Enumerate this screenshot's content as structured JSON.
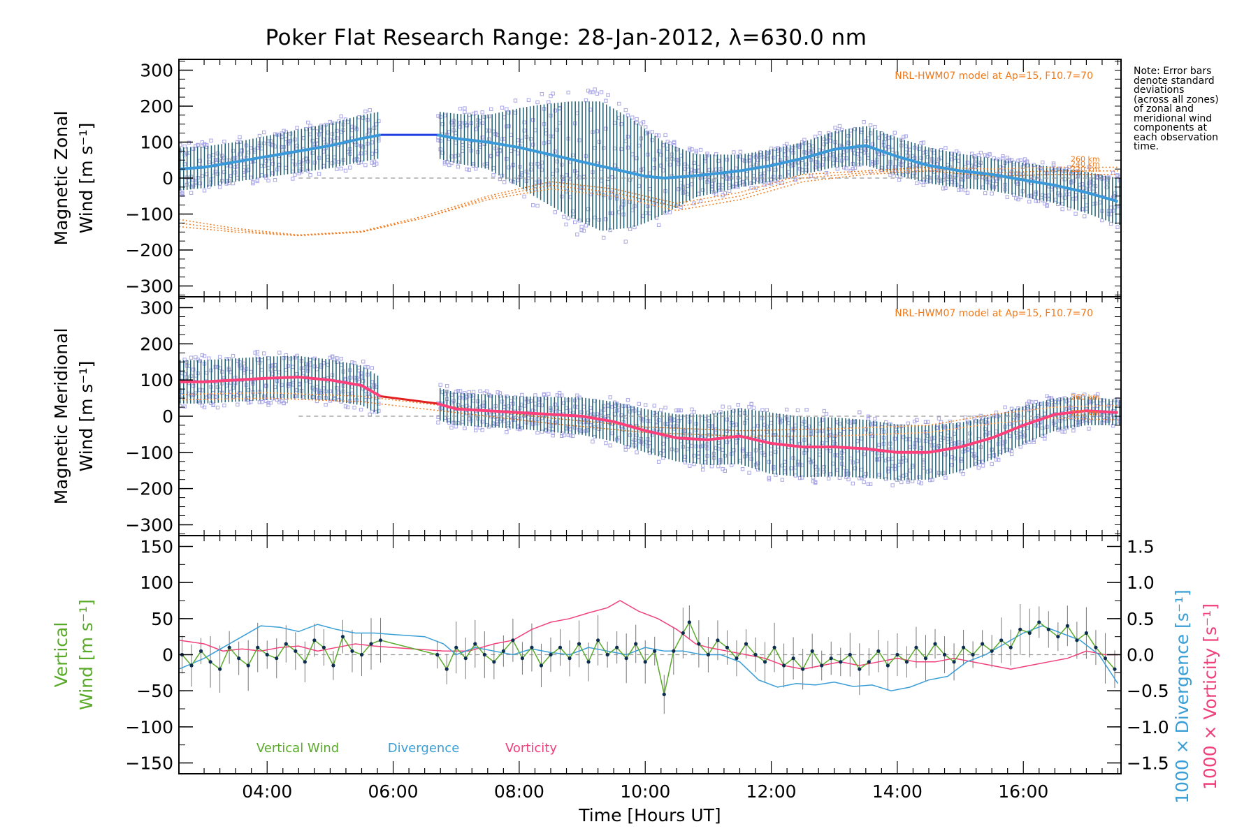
{
  "title": "Poker Flat Research Range: 28-Jan-2012, λ=630.0 nm",
  "note_lines": [
    "Note: Error bars",
    "denote standard",
    "deviations",
    "(across all zones)",
    "of zonal and",
    "meridional wind",
    "components at",
    "each observation",
    "time."
  ],
  "colors": {
    "zonal_mean": "#3a9ad9",
    "zonal_gap": "#1f3fe0",
    "meridional_mean": "#ff3f7a",
    "meridional_gap": "#e02020",
    "error_bars": "#1f5f72",
    "zone_points": "#a8a6e6",
    "model": "#f07a1a",
    "vertical": "#5aaa2a",
    "divergence": "#3a9ed6",
    "vorticity": "#f0407a",
    "vertical_points": "#0c2c50"
  },
  "chart_data": [
    {
      "type": "line",
      "panel": "zonal",
      "ylabel": [
        "Magnetic Zonal",
        "Wind [m s⁻¹]"
      ],
      "ylim": [
        -330,
        330
      ],
      "yticks": [
        -300,
        -200,
        -100,
        0,
        100,
        200,
        300
      ],
      "xlim": [
        2.6,
        17.55
      ],
      "xticks": [
        "04:00",
        "06:00",
        "08:00",
        "10:00",
        "12:00",
        "14:00",
        "16:00"
      ],
      "annotation": "NRL-HWM07 model at Ap=15, F10.7=70",
      "model_labels": [
        "260 km",
        "240 km",
        "220 km"
      ],
      "mean": {
        "x": [
          2.6,
          3.0,
          3.5,
          4.0,
          4.5,
          5.0,
          5.5,
          5.8,
          6.7,
          7.0,
          7.5,
          8.0,
          8.5,
          9.0,
          9.5,
          10.0,
          10.3,
          10.7,
          11.0,
          11.5,
          12.0,
          12.5,
          13.0,
          13.5,
          14.0,
          14.5,
          15.0,
          15.5,
          16.0,
          16.5,
          17.0,
          17.5
        ],
        "y": [
          25,
          30,
          45,
          60,
          75,
          90,
          110,
          120,
          120,
          110,
          100,
          85,
          65,
          45,
          25,
          5,
          0,
          5,
          10,
          20,
          35,
          55,
          80,
          90,
          60,
          35,
          20,
          10,
          -5,
          -20,
          -40,
          -65
        ]
      },
      "gap_segment": {
        "x": [
          5.8,
          6.7
        ],
        "y": [
          120,
          120
        ]
      },
      "std": {
        "x": [
          2.6,
          3.5,
          4.5,
          5.5,
          6.7,
          7.5,
          8.3,
          8.8,
          9.3,
          9.8,
          10.3,
          10.8,
          11.5,
          12.5,
          13.5,
          14.5,
          15.5,
          16.5,
          17.5
        ],
        "y": [
          60,
          55,
          60,
          65,
          65,
          75,
          130,
          160,
          180,
          150,
          100,
          60,
          45,
          45,
          55,
          50,
          45,
          50,
          65
        ]
      },
      "model": [
        {
          "name": "220 km",
          "x": [
            2.6,
            3.5,
            4.5,
            5.5,
            6.5,
            7.5,
            8.5,
            9.5,
            10.5,
            11.5,
            12.5,
            13.5,
            14.5,
            15.5,
            16.5,
            17.5
          ],
          "y": [
            -135,
            -150,
            -160,
            -150,
            -110,
            -60,
            -30,
            -50,
            -90,
            -60,
            -10,
            10,
            20,
            5,
            10,
            10
          ]
        },
        {
          "name": "240 km",
          "x": [
            2.6,
            3.5,
            4.5,
            5.5,
            6.5,
            7.5,
            8.5,
            9.5,
            10.5,
            11.5,
            12.5,
            13.5,
            14.5,
            15.5,
            16.5,
            17.5
          ],
          "y": [
            -125,
            -145,
            -160,
            -150,
            -110,
            -55,
            -20,
            -40,
            -80,
            -50,
            0,
            15,
            25,
            15,
            20,
            20
          ]
        },
        {
          "name": "260 km",
          "x": [
            2.6,
            3.5,
            4.5,
            5.5,
            6.5,
            7.5,
            8.5,
            9.5,
            10.5,
            11.5,
            12.5,
            13.5,
            14.5,
            15.5,
            16.5,
            17.5
          ],
          "y": [
            -115,
            -140,
            -158,
            -148,
            -105,
            -50,
            -10,
            -30,
            -70,
            -40,
            10,
            20,
            30,
            25,
            30,
            30
          ]
        }
      ],
      "reference_line": 0
    },
    {
      "type": "line",
      "panel": "meridional",
      "ylabel": [
        "Magnetic Meridional",
        "Wind [m s⁻¹]"
      ],
      "ylim": [
        -330,
        330
      ],
      "yticks": [
        -300,
        -200,
        -100,
        0,
        100,
        200,
        300
      ],
      "xlim": [
        2.6,
        17.55
      ],
      "annotation": "NRL-HWM07 model at Ap=15, F10.7=70",
      "model_labels": [
        "260 km",
        "220 km"
      ],
      "mean": {
        "x": [
          2.6,
          3.0,
          3.5,
          4.0,
          4.5,
          5.0,
          5.5,
          5.8,
          6.7,
          7.0,
          7.5,
          8.0,
          8.5,
          9.0,
          9.5,
          10.0,
          10.5,
          11.0,
          11.5,
          12.0,
          12.5,
          13.0,
          13.5,
          14.0,
          14.5,
          15.0,
          15.5,
          16.0,
          16.5,
          17.0,
          17.5
        ],
        "y": [
          95,
          95,
          100,
          105,
          108,
          100,
          85,
          55,
          35,
          20,
          15,
          10,
          5,
          0,
          -15,
          -40,
          -60,
          -65,
          -55,
          -75,
          -85,
          -85,
          -90,
          -100,
          -100,
          -85,
          -60,
          -25,
          5,
          15,
          10
        ]
      },
      "gap_segment": {
        "x": [
          5.8,
          6.7
        ],
        "y": [
          55,
          35
        ]
      },
      "std": {
        "x": [
          2.6,
          4.0,
          5.5,
          6.7,
          8.0,
          9.5,
          11.0,
          12.0,
          13.5,
          14.5,
          15.5,
          16.5,
          17.5
        ],
        "y": [
          60,
          60,
          55,
          45,
          45,
          55,
          70,
          85,
          80,
          75,
          60,
          45,
          35
        ]
      },
      "model": [
        {
          "name": "220 km",
          "x": [
            2.6,
            4.0,
            5.5,
            7.0,
            8.5,
            10.0,
            11.5,
            13.0,
            14.5,
            15.5,
            16.5,
            17.5
          ],
          "y": [
            45,
            50,
            40,
            10,
            -20,
            -45,
            -55,
            -55,
            -45,
            -20,
            -5,
            -10
          ]
        },
        {
          "name": "260 km",
          "x": [
            2.6,
            4.0,
            5.5,
            7.0,
            8.5,
            10.0,
            11.5,
            13.0,
            14.5,
            15.5,
            16.5,
            17.5
          ],
          "y": [
            60,
            65,
            55,
            25,
            -5,
            -30,
            -40,
            -35,
            -25,
            5,
            25,
            30
          ]
        }
      ],
      "reference_line": 0
    },
    {
      "type": "line",
      "panel": "vertical",
      "ylabel_left": [
        "Vertical",
        "Wind [m s⁻¹]"
      ],
      "ylabel_right": [
        "1000 × Divergence [s⁻¹]",
        "1000 × Vorticity [s⁻¹]"
      ],
      "xlabel": "Time [Hours UT]",
      "ylim": [
        -165,
        165
      ],
      "yticks": [
        -150,
        -100,
        -50,
        0,
        50,
        100,
        150
      ],
      "y2lim": [
        -1.65,
        1.65
      ],
      "y2ticks": [
        "−1.5",
        "−1.0",
        "−0.5",
        "0.0",
        "0.5",
        "1.0",
        "1.5"
      ],
      "y2tick_values": [
        -1.5,
        -1.0,
        -0.5,
        0.0,
        0.5,
        1.0,
        1.5
      ],
      "xlim": [
        2.6,
        17.55
      ],
      "xticks": [
        "04:00",
        "06:00",
        "08:00",
        "10:00",
        "12:00",
        "14:00",
        "16:00"
      ],
      "xtick_values": [
        4,
        6,
        8,
        10,
        12,
        14,
        16
      ],
      "legend": [
        "Vertical Wind",
        "Divergence",
        "Vorticity"
      ],
      "vertical_wind": {
        "x": [
          2.65,
          2.8,
          2.95,
          3.1,
          3.25,
          3.4,
          3.55,
          3.7,
          3.85,
          4.0,
          4.15,
          4.3,
          4.45,
          4.6,
          4.75,
          4.9,
          5.05,
          5.2,
          5.35,
          5.5,
          5.65,
          5.8,
          6.7,
          6.85,
          7.0,
          7.15,
          7.3,
          7.45,
          7.6,
          7.75,
          7.9,
          8.05,
          8.2,
          8.35,
          8.5,
          8.65,
          8.8,
          8.95,
          9.1,
          9.25,
          9.4,
          9.55,
          9.7,
          9.85,
          10.0,
          10.15,
          10.3,
          10.45,
          10.6,
          10.7,
          10.85,
          11.0,
          11.15,
          11.3,
          11.45,
          11.6,
          11.75,
          11.9,
          12.05,
          12.2,
          12.35,
          12.5,
          12.65,
          12.8,
          12.95,
          13.1,
          13.25,
          13.4,
          13.55,
          13.7,
          13.85,
          14.0,
          14.15,
          14.3,
          14.45,
          14.6,
          14.75,
          14.9,
          15.05,
          15.2,
          15.35,
          15.5,
          15.65,
          15.8,
          15.95,
          16.1,
          16.25,
          16.4,
          16.55,
          16.7,
          16.85,
          17.0,
          17.15,
          17.3,
          17.45
        ],
        "y": [
          0,
          -15,
          5,
          -10,
          -20,
          10,
          -5,
          -15,
          10,
          0,
          -5,
          15,
          5,
          -10,
          20,
          10,
          -15,
          25,
          5,
          0,
          15,
          20,
          0,
          -20,
          10,
          -5,
          15,
          0,
          -10,
          5,
          20,
          -5,
          10,
          -15,
          0,
          10,
          -5,
          15,
          -10,
          20,
          0,
          10,
          -5,
          15,
          -10,
          5,
          -55,
          5,
          30,
          45,
          15,
          0,
          20,
          10,
          -5,
          15,
          0,
          -10,
          10,
          -15,
          -5,
          -20,
          5,
          -15,
          -5,
          -10,
          0,
          -20,
          -10,
          5,
          -15,
          0,
          -10,
          10,
          -5,
          15,
          0,
          -10,
          10,
          0,
          15,
          5,
          20,
          10,
          35,
          30,
          45,
          35,
          25,
          40,
          20,
          30,
          10,
          -5,
          -20
        ]
      },
      "divergence": {
        "x": [
          2.6,
          3.0,
          3.3,
          3.6,
          3.9,
          4.2,
          4.5,
          4.8,
          5.1,
          5.4,
          5.7,
          6.0,
          6.5,
          6.8,
          7.0,
          7.3,
          7.6,
          7.9,
          8.2,
          8.5,
          8.8,
          9.1,
          9.4,
          9.7,
          10.0,
          10.3,
          10.6,
          10.9,
          11.2,
          11.5,
          11.8,
          12.1,
          12.4,
          12.7,
          13.0,
          13.3,
          13.6,
          13.9,
          14.2,
          14.5,
          14.8,
          15.1,
          15.4,
          15.7,
          16.0,
          16.3,
          16.6,
          16.9,
          17.2,
          17.5
        ],
        "y": [
          -0.2,
          -0.05,
          0.1,
          0.25,
          0.4,
          0.38,
          0.32,
          0.42,
          0.35,
          0.3,
          0.3,
          0.28,
          0.25,
          0.15,
          0.0,
          0.1,
          0.05,
          0.0,
          0.08,
          0.03,
          0.0,
          0.1,
          0.05,
          0.0,
          0.1,
          0.05,
          0.05,
          0.0,
          0.0,
          -0.1,
          -0.35,
          -0.45,
          -0.4,
          -0.42,
          -0.38,
          -0.44,
          -0.42,
          -0.5,
          -0.45,
          -0.35,
          -0.3,
          -0.1,
          0.0,
          0.15,
          0.3,
          0.4,
          0.3,
          0.2,
          0.0,
          -0.4
        ]
      },
      "vorticity": {
        "x": [
          2.6,
          3.0,
          3.3,
          3.6,
          3.9,
          4.2,
          4.5,
          4.8,
          5.1,
          5.4,
          5.7,
          6.0,
          6.8,
          7.2,
          7.6,
          7.9,
          8.2,
          8.5,
          8.8,
          9.1,
          9.4,
          9.6,
          9.9,
          10.2,
          10.5,
          10.8,
          11.0,
          11.3,
          11.6,
          11.9,
          12.2,
          12.5,
          12.8,
          13.1,
          13.4,
          13.7,
          14.0,
          14.3,
          14.6,
          14.9,
          15.2,
          15.5,
          15.8,
          16.1,
          16.4,
          16.7,
          17.0,
          17.3,
          17.5
        ],
        "y": [
          0.2,
          0.15,
          0.05,
          0.08,
          0.05,
          0.1,
          0.12,
          0.05,
          0.1,
          0.15,
          0.12,
          0.1,
          0.05,
          0.05,
          0.15,
          0.2,
          0.35,
          0.45,
          0.5,
          0.58,
          0.65,
          0.75,
          0.6,
          0.5,
          0.35,
          0.15,
          0.1,
          0.05,
          0.0,
          -0.05,
          -0.15,
          -0.2,
          -0.15,
          -0.1,
          -0.15,
          -0.1,
          -0.05,
          -0.1,
          -0.1,
          -0.05,
          -0.1,
          -0.15,
          -0.2,
          -0.15,
          -0.1,
          -0.05,
          0.05,
          0.0,
          0.0
        ]
      },
      "reference_line": 0
    }
  ]
}
